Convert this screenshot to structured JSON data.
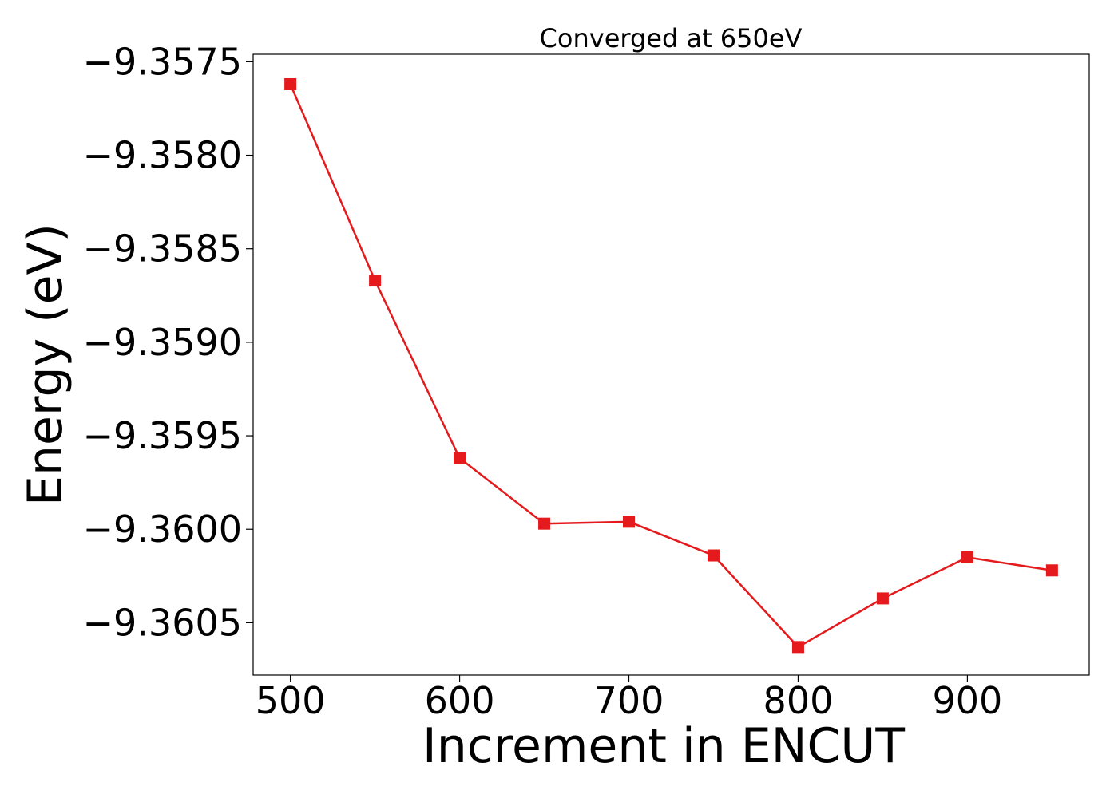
{
  "chart_data": {
    "type": "line",
    "title": "Converged at 650eV",
    "xlabel": "Increment in ENCUT",
    "ylabel": "Energy (eV)",
    "x": [
      500,
      550,
      600,
      650,
      700,
      750,
      800,
      850,
      900,
      950
    ],
    "series": [
      {
        "values": [
          -9.35762,
          -9.35867,
          -9.35962,
          -9.35997,
          -9.35996,
          -9.36014,
          -9.36063,
          -9.36037,
          -9.36015,
          -9.36022
        ],
        "color": "#e41a1c",
        "marker": "square"
      }
    ],
    "xlim": [
      478,
      972
    ],
    "ylim": [
      -9.36078,
      -9.35746
    ],
    "xticks": [
      500,
      600,
      700,
      800,
      900
    ],
    "xtick_labels": [
      "500",
      "600",
      "700",
      "800",
      "900"
    ],
    "yticks": [
      -9.3575,
      -9.358,
      -9.3585,
      -9.359,
      -9.3595,
      -9.36,
      -9.3605
    ],
    "ytick_labels": [
      "−9.3575",
      "−9.3580",
      "−9.3585",
      "−9.3590",
      "−9.3595",
      "−9.3600",
      "−9.3605"
    ],
    "grid": false,
    "legend": "none"
  }
}
